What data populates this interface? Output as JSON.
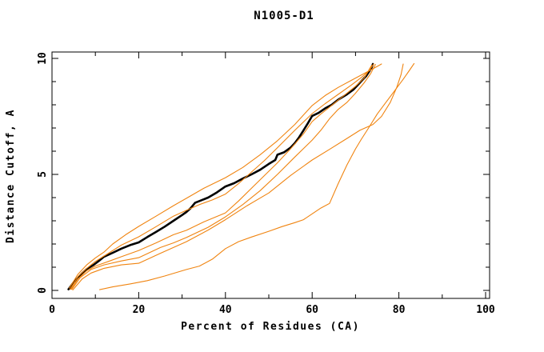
{
  "chart_data": {
    "type": "line",
    "title": "N1005-D1",
    "xlabel": "Percent of Residues (CA)",
    "ylabel": "Distance Cutoff, A",
    "xlim": [
      0,
      100
    ],
    "ylim": [
      0,
      10
    ],
    "grid": false,
    "legend_position": "none",
    "ticks_direction": "inward, mirrored on all four sides",
    "x_major_ticks": [
      0,
      20,
      40,
      60,
      80,
      100
    ],
    "x_major_tick_labels": [
      "0",
      "20",
      "40",
      "60",
      "80",
      "100"
    ],
    "x_minor_ticks": [
      10,
      30,
      50,
      70,
      90
    ],
    "y_major_ticks": [
      0,
      5,
      10
    ],
    "y_major_tick_labels": [
      "0",
      "5",
      "10"
    ],
    "y_minor_ticks": [
      1,
      2,
      3,
      4,
      6,
      7,
      8,
      9
    ],
    "y_tick_labels_rotated": true,
    "colors": {
      "background": "#ffffff",
      "axis": "#000000",
      "reference_series": "#000000",
      "prediction_series": "#f08410"
    },
    "series": [
      {
        "name": "reference-black-bold",
        "color": "#000000",
        "width": 2.6,
        "points": [
          [
            3.8,
            0.05
          ],
          [
            5,
            0.35
          ],
          [
            6,
            0.55
          ],
          [
            7,
            0.75
          ],
          [
            8,
            0.92
          ],
          [
            9.6,
            1.1
          ],
          [
            11,
            1.3
          ],
          [
            12,
            1.45
          ],
          [
            14,
            1.62
          ],
          [
            16,
            1.8
          ],
          [
            18,
            1.95
          ],
          [
            20,
            2.07
          ],
          [
            22,
            2.3
          ],
          [
            24,
            2.52
          ],
          [
            26,
            2.75
          ],
          [
            28,
            3.0
          ],
          [
            30,
            3.25
          ],
          [
            31,
            3.38
          ],
          [
            32,
            3.55
          ],
          [
            33,
            3.78
          ],
          [
            34,
            3.85
          ],
          [
            36,
            4.0
          ],
          [
            38,
            4.22
          ],
          [
            40,
            4.48
          ],
          [
            42,
            4.62
          ],
          [
            44,
            4.82
          ],
          [
            46,
            5.0
          ],
          [
            48,
            5.2
          ],
          [
            50,
            5.45
          ],
          [
            51.5,
            5.62
          ],
          [
            52,
            5.85
          ],
          [
            53.5,
            5.95
          ],
          [
            55,
            6.15
          ],
          [
            56,
            6.35
          ],
          [
            57,
            6.6
          ],
          [
            58,
            6.9
          ],
          [
            59,
            7.2
          ],
          [
            60,
            7.52
          ],
          [
            61.5,
            7.65
          ],
          [
            63,
            7.85
          ],
          [
            64.5,
            8.0
          ],
          [
            66,
            8.22
          ],
          [
            68,
            8.45
          ],
          [
            69.5,
            8.65
          ],
          [
            70.5,
            8.85
          ],
          [
            71.5,
            9.05
          ],
          [
            72.5,
            9.25
          ],
          [
            73.2,
            9.45
          ],
          [
            73.7,
            9.6
          ],
          [
            74,
            9.76
          ]
        ]
      },
      {
        "name": "prediction-orange-1",
        "color": "#f08410",
        "width": 1.1,
        "points": [
          [
            4,
            0.1
          ],
          [
            6,
            0.7
          ],
          [
            8,
            1.1
          ],
          [
            10,
            1.4
          ],
          [
            12,
            1.65
          ],
          [
            14,
            2.0
          ],
          [
            17,
            2.4
          ],
          [
            20,
            2.76
          ],
          [
            24,
            3.2
          ],
          [
            28,
            3.65
          ],
          [
            31,
            3.97
          ],
          [
            35,
            4.4
          ],
          [
            40,
            4.86
          ],
          [
            44,
            5.3
          ],
          [
            48,
            5.85
          ],
          [
            52,
            6.45
          ],
          [
            56,
            7.15
          ],
          [
            60,
            7.97
          ],
          [
            63,
            8.4
          ],
          [
            66,
            8.75
          ],
          [
            69,
            9.05
          ],
          [
            72,
            9.35
          ],
          [
            74,
            9.55
          ],
          [
            76,
            9.76
          ]
        ]
      },
      {
        "name": "prediction-orange-2",
        "color": "#f08410",
        "width": 1.1,
        "points": [
          [
            4.2,
            0.05
          ],
          [
            6,
            0.6
          ],
          [
            8,
            0.95
          ],
          [
            10,
            1.25
          ],
          [
            13,
            1.6
          ],
          [
            16,
            1.95
          ],
          [
            20,
            2.31
          ],
          [
            24,
            2.75
          ],
          [
            28,
            3.2
          ],
          [
            31,
            3.45
          ],
          [
            34,
            3.7
          ],
          [
            37,
            3.9
          ],
          [
            40,
            4.15
          ],
          [
            43,
            4.6
          ],
          [
            46,
            5.1
          ],
          [
            49,
            5.6
          ],
          [
            52,
            6.15
          ],
          [
            56,
            6.9
          ],
          [
            60,
            7.62
          ],
          [
            63,
            8.05
          ],
          [
            66,
            8.45
          ],
          [
            69,
            8.85
          ],
          [
            71.5,
            9.2
          ],
          [
            73,
            9.45
          ],
          [
            74.2,
            9.76
          ]
        ]
      },
      {
        "name": "prediction-orange-3",
        "color": "#f08410",
        "width": 1.1,
        "points": [
          [
            4.4,
            0.05
          ],
          [
            6,
            0.5
          ],
          [
            8,
            0.85
          ],
          [
            10,
            1.05
          ],
          [
            13,
            1.25
          ],
          [
            16,
            1.45
          ],
          [
            20,
            1.72
          ],
          [
            24,
            2.05
          ],
          [
            28,
            2.4
          ],
          [
            31,
            2.59
          ],
          [
            35,
            2.95
          ],
          [
            40,
            3.34
          ],
          [
            43,
            3.85
          ],
          [
            46,
            4.4
          ],
          [
            49,
            4.95
          ],
          [
            52,
            5.5
          ],
          [
            55,
            6.1
          ],
          [
            58,
            6.75
          ],
          [
            60,
            7.28
          ],
          [
            62,
            7.6
          ],
          [
            64,
            7.9
          ],
          [
            66,
            8.2
          ],
          [
            68,
            8.5
          ],
          [
            70,
            8.8
          ],
          [
            72,
            9.15
          ],
          [
            73.7,
            9.7
          ]
        ]
      },
      {
        "name": "prediction-orange-4",
        "color": "#f08410",
        "width": 1.1,
        "points": [
          [
            4.6,
            0.05
          ],
          [
            6.5,
            0.55
          ],
          [
            9,
            0.9
          ],
          [
            12,
            1.1
          ],
          [
            16,
            1.27
          ],
          [
            20,
            1.41
          ],
          [
            25,
            1.85
          ],
          [
            28,
            2.05
          ],
          [
            31,
            2.28
          ],
          [
            36,
            2.72
          ],
          [
            40,
            3.17
          ],
          [
            44,
            3.7
          ],
          [
            48,
            4.3
          ],
          [
            52,
            5.0
          ],
          [
            56,
            5.75
          ],
          [
            60,
            6.48
          ],
          [
            62,
            6.9
          ],
          [
            64,
            7.4
          ],
          [
            66,
            7.8
          ],
          [
            68,
            8.1
          ],
          [
            70,
            8.5
          ],
          [
            72,
            8.95
          ],
          [
            73.5,
            9.35
          ],
          [
            74.6,
            9.74
          ]
        ]
      },
      {
        "name": "prediction-orange-5",
        "color": "#f08410",
        "width": 1.1,
        "points": [
          [
            4.8,
            0.02
          ],
          [
            7,
            0.5
          ],
          [
            9,
            0.75
          ],
          [
            12,
            0.95
          ],
          [
            16,
            1.1
          ],
          [
            20,
            1.17
          ],
          [
            25,
            1.6
          ],
          [
            31,
            2.1
          ],
          [
            36,
            2.6
          ],
          [
            40,
            3.05
          ],
          [
            45,
            3.65
          ],
          [
            50,
            4.2
          ],
          [
            55,
            4.95
          ],
          [
            60,
            5.62
          ],
          [
            64,
            6.08
          ],
          [
            68,
            6.55
          ],
          [
            71,
            6.9
          ],
          [
            74,
            7.15
          ],
          [
            76,
            7.5
          ],
          [
            78,
            8.1
          ],
          [
            79.5,
            8.75
          ],
          [
            80.5,
            9.3
          ],
          [
            81,
            9.76
          ]
        ]
      },
      {
        "name": "prediction-orange-6-low-sweep",
        "color": "#f08410",
        "width": 1.1,
        "points": [
          [
            11,
            0.03
          ],
          [
            14,
            0.15
          ],
          [
            18,
            0.28
          ],
          [
            22,
            0.42
          ],
          [
            26,
            0.62
          ],
          [
            31,
            0.9
          ],
          [
            34,
            1.05
          ],
          [
            37,
            1.35
          ],
          [
            40,
            1.8
          ],
          [
            43,
            2.1
          ],
          [
            46,
            2.3
          ],
          [
            50,
            2.55
          ],
          [
            53,
            2.75
          ],
          [
            56,
            2.92
          ],
          [
            58,
            3.05
          ],
          [
            60,
            3.3
          ],
          [
            62,
            3.55
          ],
          [
            64,
            3.75
          ],
          [
            66,
            4.6
          ],
          [
            68,
            5.4
          ],
          [
            70,
            6.1
          ],
          [
            71.3,
            6.5
          ],
          [
            73,
            7.0
          ],
          [
            75,
            7.6
          ],
          [
            77,
            8.1
          ],
          [
            79,
            8.6
          ],
          [
            81,
            9.1
          ],
          [
            82.5,
            9.5
          ],
          [
            83.5,
            9.78
          ]
        ]
      }
    ]
  }
}
